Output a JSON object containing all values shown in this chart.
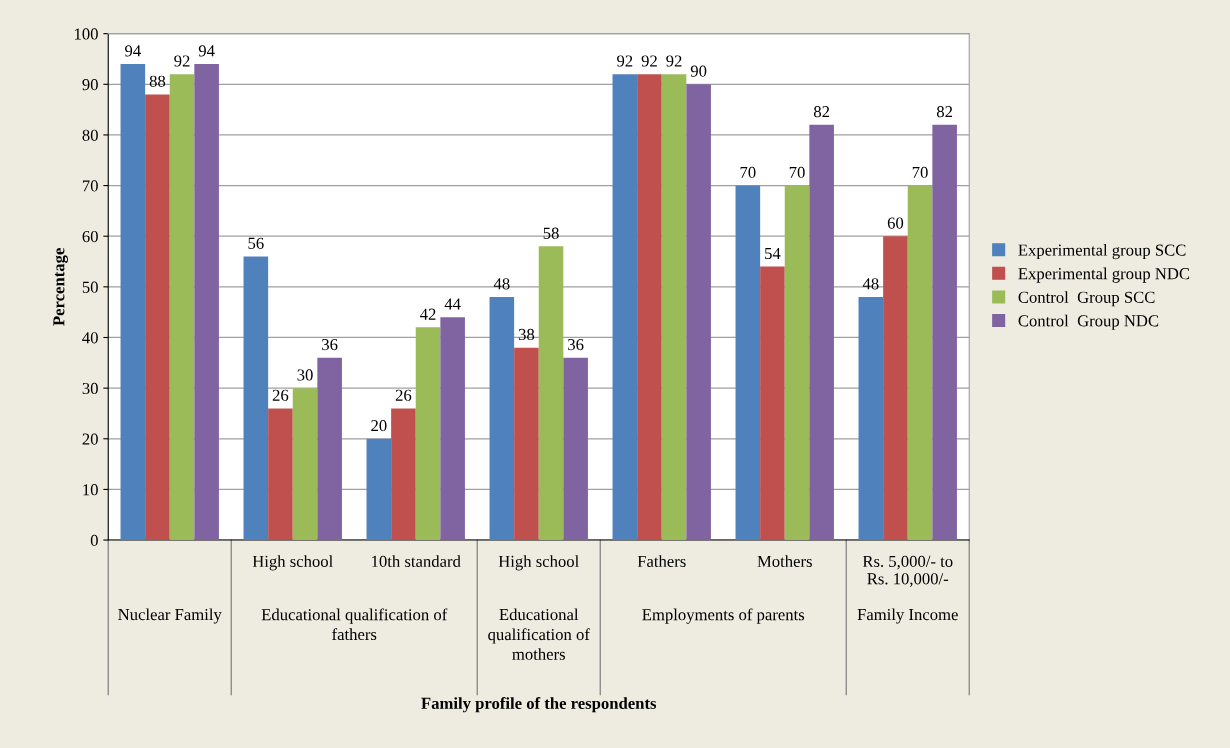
{
  "chart_data": {
    "type": "bar",
    "ylabel": "Percentage",
    "categories": [
      null,
      "High school",
      "10th standard",
      "High school",
      "Fathers",
      "Mothers",
      "Rs. 5,000/- to\nRs. 10,000/-"
    ],
    "annotations": [
      "Nuclear Family",
      "Educational qualification of\nfathers",
      "Educational\nqualification of\nmothers",
      "Employments of parents",
      "Family Income",
      "Family profile of the respondents"
    ],
    "series": [
      {
        "name": "Experimental group SCC",
        "color": "#4f81bd",
        "values": [
          94,
          56,
          20,
          48,
          92,
          70,
          48
        ]
      },
      {
        "name": "Experimental group NDC",
        "color": "#c0504d",
        "values": [
          88,
          26,
          26,
          38,
          92,
          54,
          60
        ]
      },
      {
        "name": "Control  Group SCC",
        "color": "#9bbb59",
        "values": [
          92,
          30,
          42,
          58,
          92,
          70,
          70
        ]
      },
      {
        "name": "Control  Group NDC",
        "color": "#8064a2",
        "values": [
          94,
          36,
          44,
          36,
          90,
          82,
          82
        ]
      }
    ],
    "ylim": [
      0,
      100
    ],
    "yticks": [
      0,
      10,
      20,
      30,
      40,
      50,
      60,
      70,
      80,
      90,
      100
    ],
    "grid": "y",
    "legend": "right",
    "data_labels": true
  }
}
